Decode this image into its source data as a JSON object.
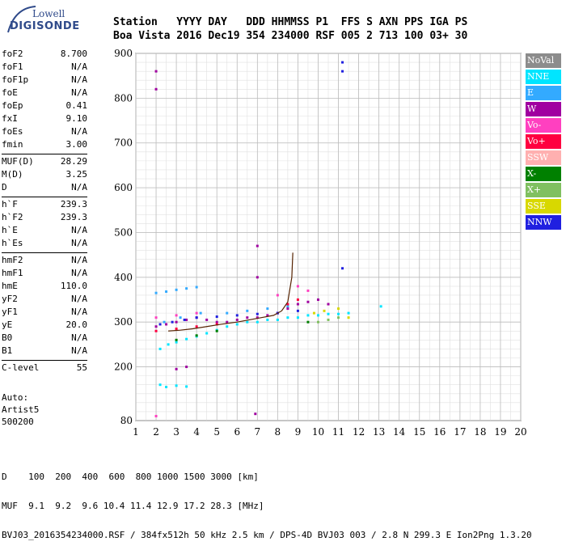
{
  "logo": {
    "top": "Lowell",
    "bottom": "DIGISONDE"
  },
  "header": {
    "labels": "Station   YYYY DAY   DDD HHMMSS P1  FFS S AXN PPS IGA PS",
    "values": "Boa Vista 2016 Dec19 354 234000 RSF 005 2 713 100 03+ 30"
  },
  "params": {
    "group1": [
      {
        "k": "foF2",
        "v": "8.700"
      },
      {
        "k": "foF1",
        "v": "N/A"
      },
      {
        "k": "foF1p",
        "v": "N/A"
      },
      {
        "k": "foE",
        "v": "N/A"
      },
      {
        "k": "foEp",
        "v": "0.41"
      },
      {
        "k": "fxI",
        "v": "9.10"
      },
      {
        "k": "foEs",
        "v": "N/A"
      },
      {
        "k": "fmin",
        "v": "3.00"
      }
    ],
    "group2": [
      {
        "k": "MUF(D)",
        "v": "28.29"
      },
      {
        "k": "M(D)",
        "v": "3.25"
      },
      {
        "k": "D",
        "v": "N/A"
      }
    ],
    "group3": [
      {
        "k": "h`F",
        "v": "239.3"
      },
      {
        "k": "h`F2",
        "v": "239.3"
      },
      {
        "k": "h`E",
        "v": "N/A"
      },
      {
        "k": "h`Es",
        "v": "N/A"
      }
    ],
    "group4": [
      {
        "k": "hmF2",
        "v": "N/A"
      },
      {
        "k": "hmF1",
        "v": "N/A"
      },
      {
        "k": "hmE",
        "v": "110.0"
      },
      {
        "k": "yF2",
        "v": "N/A"
      },
      {
        "k": "yF1",
        "v": "N/A"
      },
      {
        "k": "yE",
        "v": "20.0"
      },
      {
        "k": "B0",
        "v": "N/A"
      },
      {
        "k": "B1",
        "v": "N/A"
      }
    ],
    "group5": [
      {
        "k": "C-level",
        "v": "55"
      }
    ]
  },
  "auto": {
    "line1": "Auto:",
    "line2": "Artist5",
    "line3": "500200"
  },
  "legend": [
    {
      "label": "NoVal",
      "color": "#8c8c8c",
      "text": "#ffffff"
    },
    {
      "label": "NNE",
      "color": "#00e5ff",
      "text": "#ffffff"
    },
    {
      "label": "E",
      "color": "#33aaff",
      "text": "#ffffff"
    },
    {
      "label": "W",
      "color": "#a000a0",
      "text": "#ffffff"
    },
    {
      "label": "Vo-",
      "color": "#ff40c0",
      "text": "#ffffff"
    },
    {
      "label": "Vo+",
      "color": "#ff0040",
      "text": "#ffffff"
    },
    {
      "label": "SSW",
      "color": "#ffb0b0",
      "text": "#ffffff"
    },
    {
      "label": "X-",
      "color": "#008000",
      "text": "#ffffff"
    },
    {
      "label": "X+",
      "color": "#80c060",
      "text": "#ffffff"
    },
    {
      "label": "SSE",
      "color": "#d8d800",
      "text": "#ffffff"
    },
    {
      "label": "NNW",
      "color": "#2020e0",
      "text": "#ffffff"
    }
  ],
  "footer": {
    "line1": "D    100  200  400  600  800 1000 1500 3000 [km]",
    "line2": "MUF  9.1  9.2  9.6 10.4 11.4 12.9 17.2 28.3 [MHz]",
    "line3": "BVJ03_2016354234000.RSF / 384fx512h 50 kHz 2.5 km / DPS-4D BVJ03 003 / 2.8 N 299.3 E Ion2Png 1.3.20"
  },
  "chart_data": {
    "type": "scatter",
    "x_ticks": [
      1,
      2,
      3,
      4,
      5,
      6,
      7,
      8,
      9,
      10,
      11,
      12,
      13,
      14,
      15,
      16,
      17,
      18,
      19,
      20
    ],
    "y_ticks": [
      80,
      200,
      300,
      400,
      500,
      600,
      700,
      800,
      900
    ],
    "xlim": [
      1,
      20
    ],
    "ylim": [
      80,
      900
    ],
    "grid": true,
    "legend_position": "right",
    "series": [
      {
        "name": "NNE",
        "color": "#00e5ff",
        "points": [
          [
            2.2,
            240
          ],
          [
            2.6,
            250
          ],
          [
            3,
            255
          ],
          [
            3.5,
            262
          ],
          [
            4,
            268
          ],
          [
            4.5,
            275
          ],
          [
            5,
            282
          ],
          [
            5.5,
            290
          ],
          [
            6,
            295
          ],
          [
            6.5,
            300
          ],
          [
            7,
            300
          ],
          [
            7.5,
            305
          ],
          [
            8,
            305
          ],
          [
            8.5,
            310
          ],
          [
            9,
            310
          ],
          [
            9.5,
            315
          ],
          [
            10,
            315
          ],
          [
            10.5,
            318
          ],
          [
            11,
            318
          ],
          [
            11.5,
            320
          ],
          [
            2.2,
            160
          ],
          [
            3,
            158
          ],
          [
            3.5,
            156
          ],
          [
            2.5,
            155
          ],
          [
            13.1,
            335
          ]
        ]
      },
      {
        "name": "E",
        "color": "#33aaff",
        "points": [
          [
            2,
            365
          ],
          [
            2.5,
            368
          ],
          [
            3,
            372
          ],
          [
            3.5,
            375
          ],
          [
            4,
            378
          ],
          [
            2.4,
            300
          ],
          [
            3.2,
            310
          ],
          [
            4.2,
            320
          ],
          [
            5.5,
            320
          ],
          [
            6.5,
            325
          ],
          [
            7.5,
            330
          ],
          [
            8.5,
            335
          ]
        ]
      },
      {
        "name": "W",
        "color": "#a000a0",
        "points": [
          [
            2,
            290
          ],
          [
            2.5,
            295
          ],
          [
            3,
            300
          ],
          [
            3.5,
            305
          ],
          [
            4,
            310
          ],
          [
            4.5,
            305
          ],
          [
            5,
            300
          ],
          [
            5.5,
            300
          ],
          [
            6,
            305
          ],
          [
            6.5,
            310
          ],
          [
            7,
            310
          ],
          [
            7.5,
            315
          ],
          [
            8,
            320
          ],
          [
            8.5,
            330
          ],
          [
            9,
            340
          ],
          [
            9.5,
            345
          ],
          [
            10,
            350
          ],
          [
            10.5,
            340
          ],
          [
            2,
            820
          ],
          [
            2,
            860
          ],
          [
            7,
            470
          ],
          [
            7,
            400
          ],
          [
            6.9,
            95
          ],
          [
            3,
            195
          ],
          [
            3.5,
            200
          ]
        ]
      },
      {
        "name": "Vo-",
        "color": "#ff40c0",
        "points": [
          [
            2,
            310
          ],
          [
            3,
            315
          ],
          [
            4,
            320
          ],
          [
            8,
            360
          ],
          [
            9,
            380
          ],
          [
            9.5,
            370
          ],
          [
            2,
            90
          ]
        ]
      },
      {
        "name": "Vo+",
        "color": "#ff0040",
        "points": [
          [
            2,
            280
          ],
          [
            3,
            285
          ],
          [
            4,
            290
          ],
          [
            5,
            295
          ],
          [
            8.5,
            340
          ],
          [
            9,
            350
          ]
        ]
      },
      {
        "name": "X-",
        "color": "#008000",
        "points": [
          [
            3,
            260
          ],
          [
            4,
            270
          ],
          [
            5,
            280
          ],
          [
            9.5,
            300
          ]
        ]
      },
      {
        "name": "X+",
        "color": "#80c060",
        "points": [
          [
            10,
            300
          ],
          [
            10.5,
            305
          ],
          [
            11,
            310
          ]
        ]
      },
      {
        "name": "SSE",
        "color": "#d8d800",
        "points": [
          [
            9.8,
            320
          ],
          [
            10.3,
            325
          ],
          [
            11,
            330
          ],
          [
            11.5,
            310
          ]
        ]
      },
      {
        "name": "NNW",
        "color": "#2020e0",
        "points": [
          [
            2.2,
            295
          ],
          [
            2.8,
            300
          ],
          [
            3.4,
            305
          ],
          [
            4,
            310
          ],
          [
            5,
            312
          ],
          [
            6,
            315
          ],
          [
            7,
            318
          ],
          [
            8,
            320
          ],
          [
            9,
            325
          ],
          [
            11.2,
            420
          ],
          [
            11.2,
            880
          ],
          [
            11.2,
            860
          ]
        ]
      }
    ],
    "trace": {
      "color": "#552200",
      "points": [
        [
          2.6,
          280
        ],
        [
          3.2,
          282
        ],
        [
          3.8,
          285
        ],
        [
          4.5,
          290
        ],
        [
          5.2,
          295
        ],
        [
          6,
          300
        ],
        [
          6.6,
          305
        ],
        [
          7.2,
          310
        ],
        [
          7.8,
          315
        ],
        [
          8.2,
          325
        ],
        [
          8.5,
          345
        ],
        [
          8.7,
          400
        ],
        [
          8.75,
          455
        ]
      ]
    }
  }
}
